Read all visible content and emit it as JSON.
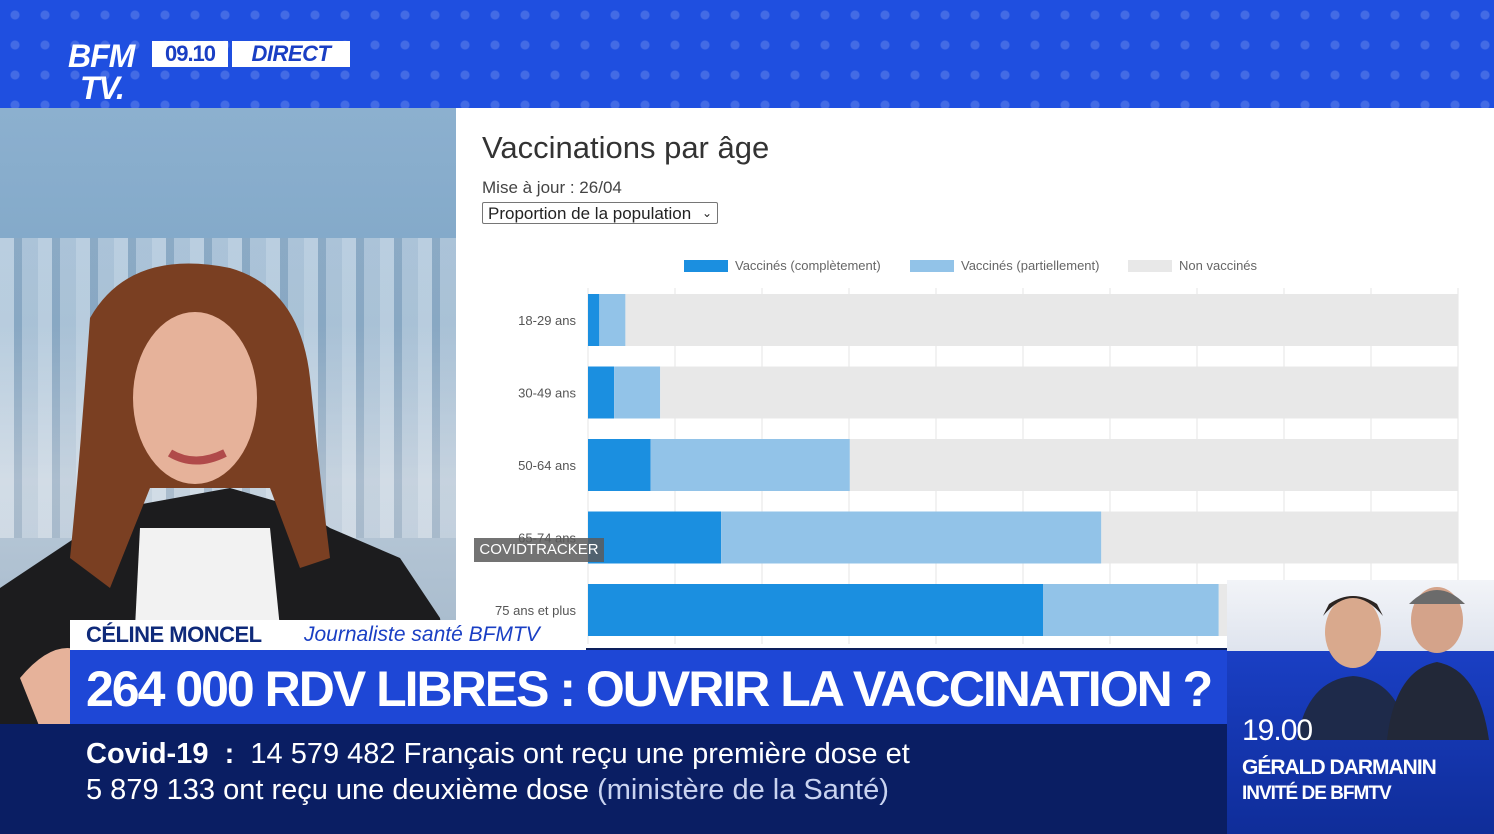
{
  "channel": {
    "logo_line1": "BFM",
    "logo_line2": "TV.",
    "clock": "09.10",
    "live_label": "DIRECT"
  },
  "chart_panel": {
    "title": "Vaccinations par âge",
    "update": "Mise à jour : 26/04",
    "select_value": "Proportion de la population",
    "watermark": "COVIDTRACKER"
  },
  "chart_data": {
    "type": "bar",
    "orientation": "horizontal",
    "stacked": true,
    "title": "Vaccinations par âge",
    "categories": [
      "18-29 ans",
      "30-49 ans",
      "50-64 ans",
      "65-74 ans",
      "75 ans et plus"
    ],
    "series": [
      {
        "name": "Vaccinés (complètement)",
        "color": "#1b8fe0",
        "values": [
          1.3,
          3.0,
          7.2,
          15.3,
          52.3
        ]
      },
      {
        "name": "Vaccinés (partiellement)",
        "color": "#92c3e8",
        "values": [
          3.0,
          5.3,
          22.9,
          43.7,
          20.2
        ]
      },
      {
        "name": "Non vaccinés",
        "color": "#e8e8e8",
        "values": [
          95.7,
          91.7,
          69.9,
          41.0,
          27.5
        ]
      }
    ],
    "xlim": [
      0,
      100
    ],
    "grid": true,
    "legend_position": "top"
  },
  "lower_third": {
    "name": "CÉLINE MONCEL",
    "role": "Journaliste santé BFMTV",
    "headline": "264 000 RDV LIBRES : OUVRIR LA VACCINATION ?",
    "ticker_topic": "Covid-19",
    "ticker_sep": ":",
    "ticker_line1": "14 579 482 Français ont reçu une première dose et",
    "ticker_line2": "5 879 133 ont reçu une deuxième dose",
    "ticker_source": "(ministère de la Santé)"
  },
  "promo": {
    "time": "19.00",
    "guest": "GÉRALD DARMANIN",
    "subtitle": "INVITÉ DE BFMTV"
  }
}
